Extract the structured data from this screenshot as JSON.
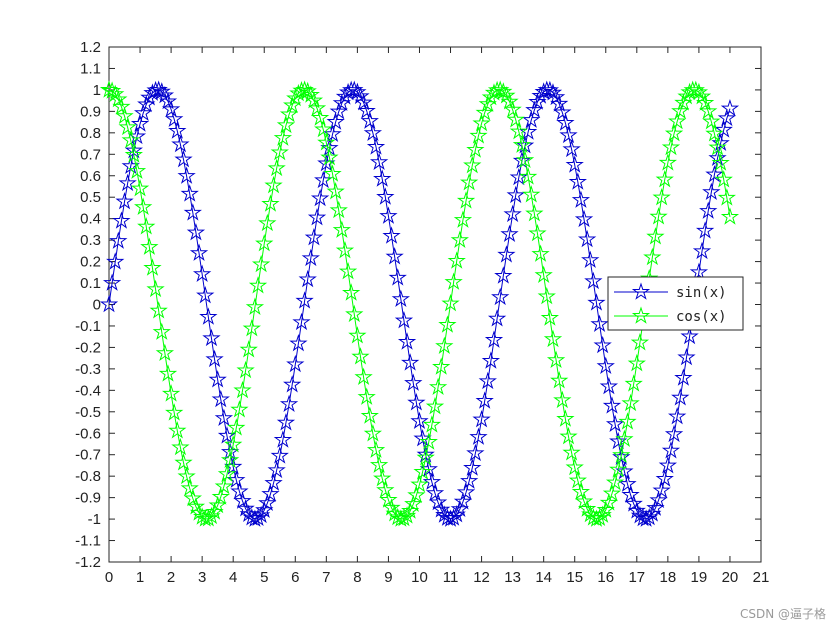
{
  "chart_data": {
    "type": "line",
    "title": "",
    "xlabel": "",
    "ylabel": "",
    "xlim": [
      0,
      21
    ],
    "ylim": [
      -1.2,
      1.2
    ],
    "x_ticks": [
      "0",
      "1",
      "2",
      "3",
      "4",
      "5",
      "6",
      "7",
      "8",
      "9",
      "10",
      "11",
      "12",
      "13",
      "14",
      "15",
      "16",
      "17",
      "18",
      "19",
      "20",
      "21"
    ],
    "y_ticks": [
      "1.2",
      "1.1",
      "1",
      "0.9",
      "0.8",
      "0.7",
      "0.6",
      "0.5",
      "0.4",
      "0.3",
      "0.2",
      "0.1",
      "0",
      "-0.1",
      "-0.2",
      "-0.3",
      "-0.4",
      "-0.5",
      "-0.6",
      "-0.7",
      "-0.8",
      "-0.9",
      "-1",
      "-1.1",
      "-1.2"
    ],
    "grid": false,
    "legend_position": "right",
    "marker": "pentagram",
    "x_range": {
      "start": 0,
      "end": 20,
      "step": 0.1
    },
    "series": [
      {
        "name": "sin(x)",
        "function": "sin(x)",
        "color": "#0000CD"
      },
      {
        "name": "cos(x)",
        "function": "cos(x)",
        "color": "#00FF00"
      }
    ]
  },
  "watermark": "CSDN @逼子格"
}
